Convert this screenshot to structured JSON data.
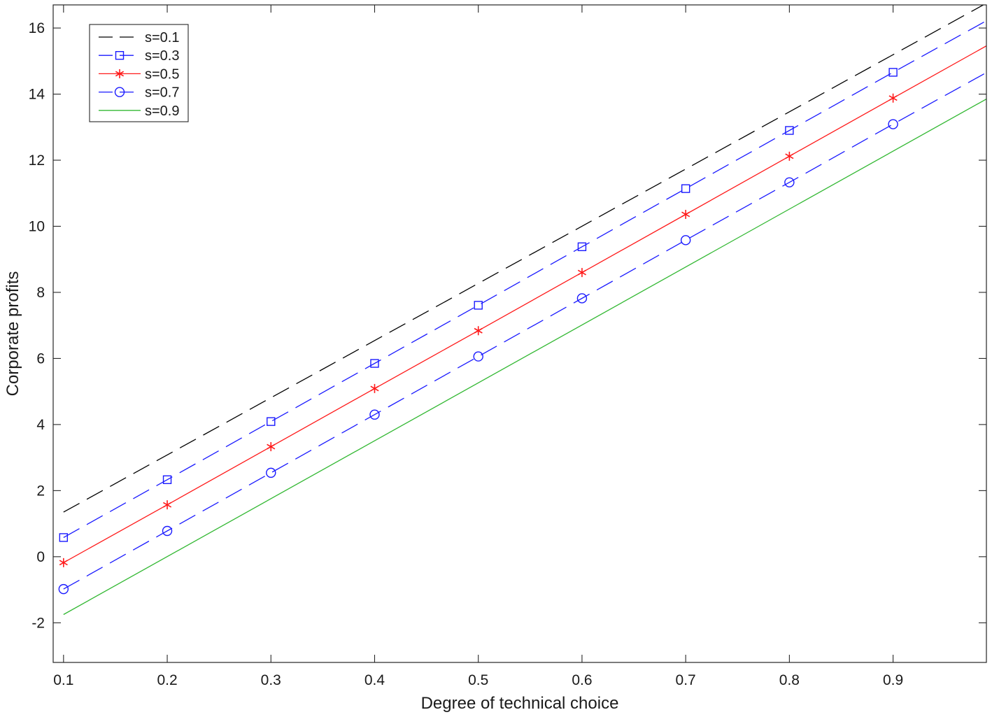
{
  "chart_data": {
    "type": "line",
    "title": "",
    "xlabel": "Degree of technical choice",
    "ylabel": "Corporate profits",
    "xlim": [
      0.09,
      0.99
    ],
    "ylim": [
      -3.2,
      16.7
    ],
    "xticks": [
      0.1,
      0.2,
      0.3,
      0.4,
      0.5,
      0.6,
      0.7,
      0.8,
      0.9
    ],
    "xtick_labels": [
      "0.1",
      "0.2",
      "0.3",
      "0.4",
      "0.5",
      "0.6",
      "0.7",
      "0.8",
      "0.9"
    ],
    "yticks": [
      -2,
      0,
      2,
      4,
      6,
      8,
      10,
      12,
      14,
      16
    ],
    "ytick_labels": [
      "-2",
      "0",
      "2",
      "4",
      "6",
      "8",
      "10",
      "12",
      "14",
      "16"
    ],
    "grid": false,
    "legend_position": "top-left",
    "series": [
      {
        "name": "s=0.1",
        "color": "#000000",
        "dash": "long-dash",
        "marker": "none",
        "x": [
          0.1,
          0.99
        ],
        "y": [
          1.35,
          16.75
        ]
      },
      {
        "name": "s=0.3",
        "color": "#1a1aff",
        "dash": "long-dash",
        "marker": "square",
        "x": [
          0.1,
          0.2,
          0.3,
          0.4,
          0.5,
          0.6,
          0.7,
          0.8,
          0.9,
          0.99
        ],
        "y": [
          0.58,
          2.33,
          4.09,
          5.85,
          7.61,
          9.38,
          11.14,
          12.9,
          14.66,
          16.22
        ]
      },
      {
        "name": "s=0.5",
        "color": "#ff1a1a",
        "dash": "solid",
        "marker": "asterisk",
        "x": [
          0.1,
          0.2,
          0.3,
          0.4,
          0.5,
          0.6,
          0.7,
          0.8,
          0.9,
          0.99
        ],
        "y": [
          -0.18,
          1.57,
          3.33,
          5.09,
          6.84,
          8.6,
          10.36,
          12.12,
          13.88,
          15.46
        ]
      },
      {
        "name": "s=0.7",
        "color": "#1a1aff",
        "dash": "long-dash",
        "marker": "circle",
        "x": [
          0.1,
          0.2,
          0.3,
          0.4,
          0.5,
          0.6,
          0.7,
          0.8,
          0.9,
          0.99
        ],
        "y": [
          -0.98,
          0.78,
          2.54,
          4.3,
          6.06,
          7.82,
          9.58,
          11.33,
          13.09,
          14.65
        ]
      },
      {
        "name": "s=0.9",
        "color": "#33b833",
        "dash": "solid",
        "marker": "none",
        "x": [
          0.1,
          0.99
        ],
        "y": [
          -1.75,
          13.85
        ]
      }
    ]
  }
}
